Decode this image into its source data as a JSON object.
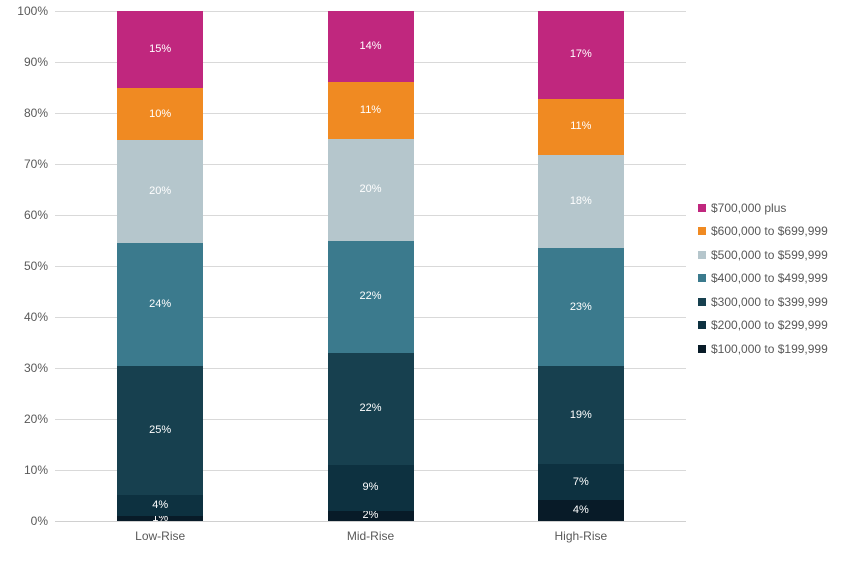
{
  "chart_data": {
    "type": "bar",
    "variant": "stacked-100-percent-column",
    "title": "",
    "xlabel": "",
    "ylabel": "",
    "categories": [
      "Low-Rise",
      "Mid-Rise",
      "High-Rise"
    ],
    "series": [
      {
        "name": "$700,000 plus",
        "color": "#C0277E",
        "values": [
          15,
          14,
          17
        ]
      },
      {
        "name": "$600,000 to $699,999",
        "color": "#F08A22",
        "values": [
          10,
          11,
          11
        ]
      },
      {
        "name": "$500,000 to $599,999",
        "color": "#B5C6CC",
        "values": [
          20,
          20,
          18
        ]
      },
      {
        "name": "$400,000 to $499,999",
        "color": "#3B7A8D",
        "values": [
          24,
          22,
          23
        ]
      },
      {
        "name": "$300,000 to $399,999",
        "color": "#17404F",
        "values": [
          25,
          22,
          19
        ]
      },
      {
        "name": "$200,000 to $299,999",
        "color": "#0D3140",
        "values": [
          4,
          9,
          7
        ]
      },
      {
        "name": "$100,000 to $199,999",
        "color": "#081B28",
        "values": [
          1,
          2,
          4
        ]
      }
    ],
    "data_labels": {
      "Low-Rise": [
        "15%",
        "10%",
        "20%",
        "24%",
        "25%",
        "4%",
        "1%"
      ],
      "Mid-Rise": [
        "14%",
        "11%",
        "20%",
        "22%",
        "22%",
        "9%",
        "2%"
      ],
      "High-Rise": [
        "17%",
        "11%",
        "18%",
        "23%",
        "19%",
        "7%",
        "4%"
      ]
    },
    "y_axis": {
      "ticks": [
        "0%",
        "10%",
        "20%",
        "30%",
        "40%",
        "50%",
        "60%",
        "70%",
        "80%",
        "90%",
        "100%"
      ],
      "min": 0,
      "max": 100,
      "grid": true
    },
    "legend_position": "right",
    "colors": {
      "gridline": "#d9d9d9",
      "axis_text": "#595959",
      "data_label_text": "#ffffff",
      "background": "#ffffff"
    }
  }
}
